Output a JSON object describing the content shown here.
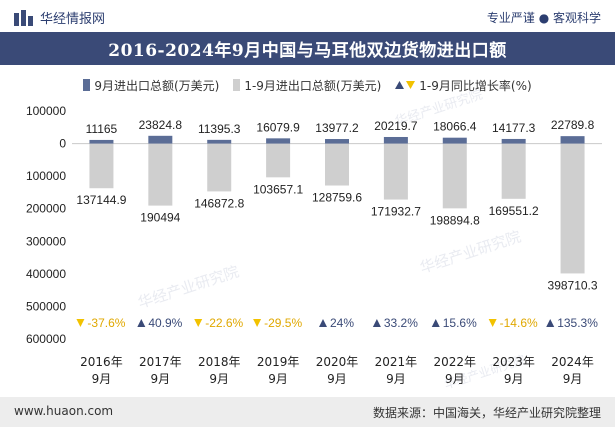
{
  "header": {
    "brand": "华经情报网",
    "tagline": "专业严谨 ● 客观科学"
  },
  "footer": {
    "website": "www.huaon.com",
    "source": "数据来源：中国海关，华经产业研究院整理"
  },
  "legend": {
    "monthly": "9月进出口总额(万美元)",
    "cumulative": "1-9月进出口总额(万美元)",
    "growth": "1-9月同比增长率(%)"
  },
  "colors": {
    "monthly": "#5b6d96",
    "cumulative": "#cfcfcf",
    "growth_up": "#3a4a77",
    "growth_down": "#f2c200",
    "title_bg": "#3a4a77"
  },
  "watermark": "华经产业研究院",
  "chart_data": {
    "type": "bar",
    "title": "2016-2024年9月中国与马耳他双边货物进出口额",
    "categories": [
      "2016年\n9月",
      "2017年\n9月",
      "2018年\n9月",
      "2019年\n9月",
      "2020年\n9月",
      "2021年\n9月",
      "2022年\n9月",
      "2023年\n9月",
      "2024年\n9月"
    ],
    "series": [
      {
        "name": "9月进出口总额(万美元)",
        "values": [
          11165,
          23824.8,
          11395.3,
          16079.9,
          13977.2,
          20219.7,
          18066.4,
          14177.3,
          22789.8
        ],
        "labels": [
          "11165",
          "23824.8",
          "11395.3",
          "16079.9",
          "13977.2",
          "20219.7",
          "18066.4",
          "14177.3",
          "22789.8"
        ]
      },
      {
        "name": "1-9月进出口总额(万美元)",
        "values": [
          -137144.9,
          -190494,
          -146872.8,
          -103657.1,
          -128759.6,
          -171932.7,
          -198894.8,
          -169551.2,
          -398710.3
        ],
        "labels": [
          "137144.9",
          "190494",
          "146872.8",
          "103657.1",
          "128759.6",
          "171932.7",
          "198894.8",
          "169551.2",
          "398710.3"
        ]
      },
      {
        "name": "1-9月同比增长率(%)",
        "values": [
          -37.6,
          40.9,
          -22.6,
          -29.5,
          24,
          33.2,
          15.6,
          -14.6,
          135.3
        ],
        "labels": [
          "-37.6%",
          "40.9%",
          "-22.6%",
          "-29.5%",
          "24%",
          "33.2%",
          "15.6%",
          "-14.6%",
          "135.3%"
        ]
      }
    ],
    "y_ticks": [
      100000,
      0,
      -100000,
      -200000,
      -300000,
      -400000,
      -500000,
      -600000
    ],
    "y_tick_labels": [
      "100000",
      "0",
      "100000",
      "200000",
      "300000",
      "400000",
      "500000",
      "600000"
    ],
    "ylim": [
      -600000,
      100000
    ],
    "grid": false,
    "legend_position": "top"
  }
}
